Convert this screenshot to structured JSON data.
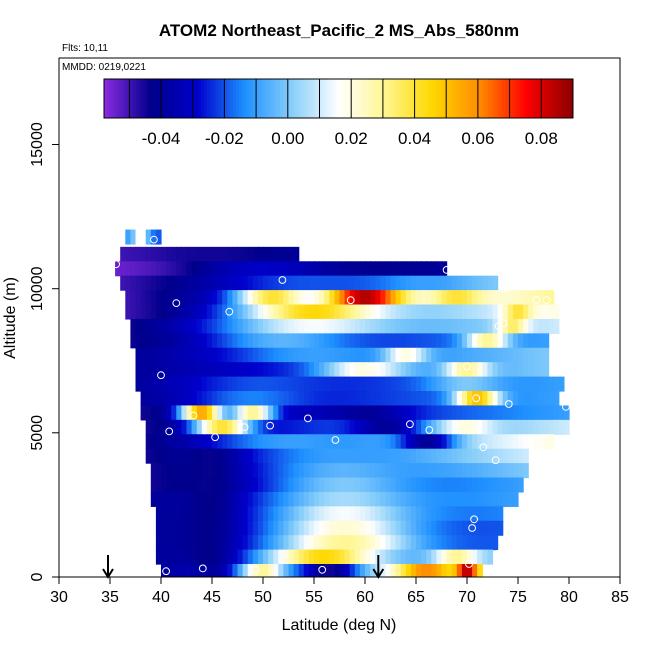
{
  "chart_data": {
    "type": "heatmap",
    "title": "ATOM2 Northeast_Pacific_2 MS_Abs_580nm",
    "subtitle_flights": "Flts: 10,11",
    "subtitle_dates": "MMDD: 0219,0221",
    "xlabel": "Latitude (deg N)",
    "ylabel": "Altitude (m)",
    "xlim": [
      30,
      85
    ],
    "ylim": [
      0,
      18000
    ],
    "x_ticks": [
      "30",
      "35",
      "40",
      "45",
      "50",
      "55",
      "60",
      "65",
      "70",
      "75",
      "80",
      "85"
    ],
    "y_ticks": [
      "0",
      "5000",
      "10000",
      "15000"
    ],
    "colorbar": {
      "min": -0.058,
      "max": 0.09,
      "ticks": [
        "-0.04",
        "-0.02",
        "0.00",
        "0.02",
        "0.04",
        "0.06",
        "0.08"
      ],
      "colors": [
        "#8a2be2",
        "#00008b",
        "#0000cd",
        "#1e90ff",
        "#87cefa",
        "#ffffff",
        "#fff68f",
        "#ffd700",
        "#ff8c00",
        "#ff0000",
        "#8b0000"
      ]
    },
    "arrows_latitude": [
      34.8,
      61.3
    ],
    "rows": [
      {
        "alt": 11800,
        "x0": 36.5,
        "x1": 40.0,
        "left": -0.01,
        "right": -0.02,
        "mid": [
          {
            "x": 38.0,
            "v": 0.02,
            "w": 1.0
          }
        ]
      },
      {
        "alt": 11200,
        "x0": 36.0,
        "x1": 53.5,
        "left": -0.05,
        "right": -0.04,
        "mid": [
          {
            "x": 45.0,
            "v": -0.045,
            "w": 6.0
          }
        ]
      },
      {
        "alt": 10700,
        "x0": 35.5,
        "x1": 68.0,
        "left": -0.055,
        "right": -0.04,
        "mid": [
          {
            "x": 50.0,
            "v": -0.03,
            "w": 10.0
          }
        ]
      },
      {
        "alt": 10200,
        "x0": 36.0,
        "x1": 73.0,
        "left": -0.05,
        "right": 0.0,
        "mid": [
          {
            "x": 55.0,
            "v": -0.02,
            "w": 10.0
          },
          {
            "x": 66.0,
            "v": -0.01,
            "w": 4.0
          }
        ]
      },
      {
        "alt": 9700,
        "x0": 36.5,
        "x1": 78.5,
        "left": -0.05,
        "right": 0.03,
        "mid": [
          {
            "x": 60.0,
            "v": 0.085,
            "w": 6.0
          },
          {
            "x": 51.0,
            "v": 0.04,
            "w": 5.0
          },
          {
            "x": 69.0,
            "v": 0.04,
            "w": 4.0
          }
        ]
      },
      {
        "alt": 9200,
        "x0": 36.5,
        "x1": 79.0,
        "left": -0.05,
        "right": 0.02,
        "mid": [
          {
            "x": 55.0,
            "v": 0.045,
            "w": 10.0
          },
          {
            "x": 75.0,
            "v": 0.04,
            "w": 2.0
          }
        ]
      },
      {
        "alt": 8700,
        "x0": 37.0,
        "x1": 79.0,
        "left": -0.045,
        "right": 0.01,
        "mid": [
          {
            "x": 55.0,
            "v": 0.015,
            "w": 12.0
          },
          {
            "x": 74.5,
            "v": 0.035,
            "w": 2.0
          }
        ]
      },
      {
        "alt": 8200,
        "x0": 37.0,
        "x1": 78.0,
        "left": -0.045,
        "right": -0.01,
        "mid": [
          {
            "x": 52.0,
            "v": -0.005,
            "w": 10.0
          },
          {
            "x": 72.0,
            "v": 0.03,
            "w": 3.0
          }
        ]
      },
      {
        "alt": 7700,
        "x0": 37.5,
        "x1": 78.0,
        "left": -0.04,
        "right": 0.0,
        "mid": [
          {
            "x": 55.0,
            "v": -0.01,
            "w": 10.0
          },
          {
            "x": 64.0,
            "v": 0.02,
            "w": 3.0
          }
        ]
      },
      {
        "alt": 7200,
        "x0": 37.5,
        "x1": 78.0,
        "left": -0.04,
        "right": 0.0,
        "mid": [
          {
            "x": 60.0,
            "v": 0.02,
            "w": 6.0
          },
          {
            "x": 70.0,
            "v": 0.03,
            "w": 3.0
          }
        ]
      },
      {
        "alt": 6700,
        "x0": 37.5,
        "x1": 79.5,
        "left": -0.04,
        "right": -0.01,
        "mid": [
          {
            "x": 50.0,
            "v": -0.02,
            "w": 10.0
          },
          {
            "x": 70.0,
            "v": 0.0,
            "w": 5.0
          }
        ]
      },
      {
        "alt": 6200,
        "x0": 38.0,
        "x1": 79.0,
        "left": -0.04,
        "right": -0.01,
        "mid": [
          {
            "x": 49.0,
            "v": -0.015,
            "w": 8.0
          },
          {
            "x": 71.0,
            "v": 0.05,
            "w": 3.0
          }
        ]
      },
      {
        "alt": 5700,
        "x0": 38.0,
        "x1": 80.0,
        "left": -0.045,
        "right": -0.01,
        "mid": [
          {
            "x": 44.0,
            "v": 0.055,
            "w": 3.0
          },
          {
            "x": 49.0,
            "v": 0.03,
            "w": 3.0
          },
          {
            "x": 60.0,
            "v": -0.04,
            "w": 6.0
          }
        ]
      },
      {
        "alt": 5200,
        "x0": 38.5,
        "x1": 80.0,
        "left": -0.045,
        "right": 0.01,
        "mid": [
          {
            "x": 46.0,
            "v": 0.04,
            "w": 4.0
          },
          {
            "x": 62.0,
            "v": -0.04,
            "w": 5.0
          },
          {
            "x": 70.0,
            "v": 0.02,
            "w": 4.0
          }
        ]
      },
      {
        "alt": 4700,
        "x0": 38.5,
        "x1": 78.5,
        "left": -0.045,
        "right": 0.02,
        "mid": [
          {
            "x": 53.0,
            "v": -0.01,
            "w": 10.0
          },
          {
            "x": 66.0,
            "v": -0.04,
            "w": 4.0
          }
        ]
      },
      {
        "alt": 4200,
        "x0": 38.5,
        "x1": 76.0,
        "left": -0.045,
        "right": 0.01,
        "mid": [
          {
            "x": 45.0,
            "v": -0.045,
            "w": 4.0
          },
          {
            "x": 58.0,
            "v": -0.01,
            "w": 10.0
          }
        ]
      },
      {
        "alt": 3700,
        "x0": 39.0,
        "x1": 76.0,
        "left": -0.045,
        "right": 0.0,
        "mid": [
          {
            "x": 45.0,
            "v": -0.045,
            "w": 4.0
          },
          {
            "x": 58.0,
            "v": -0.005,
            "w": 10.0
          }
        ]
      },
      {
        "alt": 3200,
        "x0": 39.0,
        "x1": 75.5,
        "left": -0.045,
        "right": -0.01,
        "mid": [
          {
            "x": 45.0,
            "v": -0.045,
            "w": 4.0
          },
          {
            "x": 58.0,
            "v": 0.0,
            "w": 10.0
          }
        ]
      },
      {
        "alt": 2700,
        "x0": 39.0,
        "x1": 75.0,
        "left": -0.04,
        "right": -0.01,
        "mid": [
          {
            "x": 45.0,
            "v": -0.045,
            "w": 4.0
          },
          {
            "x": 58.0,
            "v": 0.005,
            "w": 10.0
          }
        ]
      },
      {
        "alt": 2200,
        "x0": 39.5,
        "x1": 73.5,
        "left": -0.04,
        "right": -0.015,
        "mid": [
          {
            "x": 45.0,
            "v": -0.045,
            "w": 4.0
          },
          {
            "x": 58.0,
            "v": 0.015,
            "w": 10.0
          }
        ]
      },
      {
        "alt": 1700,
        "x0": 39.5,
        "x1": 73.5,
        "left": -0.04,
        "right": -0.02,
        "mid": [
          {
            "x": 45.0,
            "v": -0.045,
            "w": 4.0
          },
          {
            "x": 58.0,
            "v": 0.022,
            "w": 10.0
          }
        ]
      },
      {
        "alt": 1200,
        "x0": 39.5,
        "x1": 73.0,
        "left": -0.04,
        "right": -0.02,
        "mid": [
          {
            "x": 45.0,
            "v": -0.045,
            "w": 4.0
          },
          {
            "x": 58.0,
            "v": 0.03,
            "w": 10.0
          }
        ]
      },
      {
        "alt": 700,
        "x0": 39.5,
        "x1": 72.5,
        "left": -0.04,
        "right": 0.0,
        "mid": [
          {
            "x": 45.0,
            "v": -0.045,
            "w": 4.0
          },
          {
            "x": 56.0,
            "v": 0.045,
            "w": 8.0
          },
          {
            "x": 69.0,
            "v": 0.03,
            "w": 3.0
          }
        ]
      },
      {
        "alt": 200,
        "x0": 40.0,
        "x1": 71.5,
        "left": -0.04,
        "right": 0.03,
        "mid": [
          {
            "x": 45.0,
            "v": -0.04,
            "w": 3.0
          },
          {
            "x": 50.0,
            "v": 0.03,
            "w": 3.0
          },
          {
            "x": 56.5,
            "v": -0.045,
            "w": 4.0
          },
          {
            "x": 66.0,
            "v": 0.06,
            "w": 4.0
          },
          {
            "x": 70.0,
            "v": 0.085,
            "w": 1.5
          }
        ]
      }
    ],
    "points": [
      [
        38.0,
        11850
      ],
      [
        39.3,
        11700
      ],
      [
        35.6,
        10850
      ],
      [
        51.9,
        10300
      ],
      [
        68.0,
        10650
      ],
      [
        41.5,
        9500
      ],
      [
        58.6,
        9600
      ],
      [
        76.8,
        9600
      ],
      [
        77.8,
        9600
      ],
      [
        73.7,
        10000
      ],
      [
        46.7,
        9200
      ],
      [
        73.6,
        8800
      ],
      [
        73.1,
        8700
      ],
      [
        63.5,
        7650
      ],
      [
        60.5,
        7250
      ],
      [
        70.0,
        7300
      ],
      [
        40.0,
        7000
      ],
      [
        70.9,
        6200
      ],
      [
        74.1,
        6000
      ],
      [
        79.7,
        5900
      ],
      [
        43.2,
        5600
      ],
      [
        54.4,
        5500
      ],
      [
        48.2,
        5200
      ],
      [
        50.7,
        5250
      ],
      [
        64.4,
        5300
      ],
      [
        66.3,
        5100
      ],
      [
        40.8,
        5050
      ],
      [
        45.3,
        4850
      ],
      [
        57.1,
        4750
      ],
      [
        71.6,
        4500
      ],
      [
        77.5,
        4800
      ],
      [
        72.8,
        4050
      ],
      [
        70.7,
        2000
      ],
      [
        70.5,
        1700
      ],
      [
        73.0,
        800
      ],
      [
        70.2,
        450
      ],
      [
        40.5,
        200
      ],
      [
        44.1,
        300
      ],
      [
        55.8,
        250
      ],
      [
        49.3,
        250
      ]
    ]
  }
}
